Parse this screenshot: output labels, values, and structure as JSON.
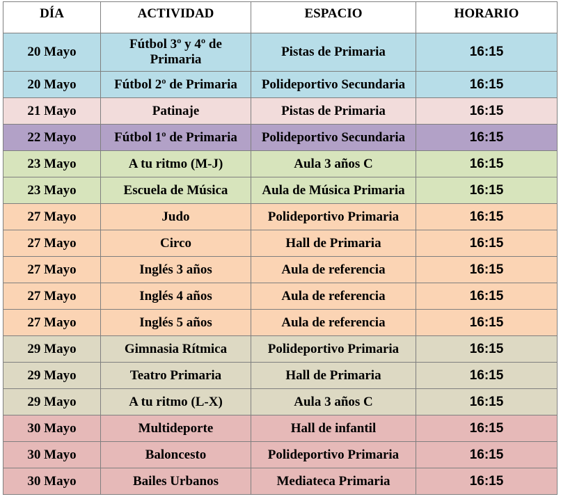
{
  "headers": {
    "dia": "DÍA",
    "actividad": "ACTIVIDAD",
    "espacio": "ESPACIO",
    "horario": "HORARIO"
  },
  "colors": {
    "blue": "#b7dde8",
    "pink": "#f2dcdb",
    "purple": "#b2a1c7",
    "green": "#d7e4bc",
    "orange": "#fbd4b4",
    "beige": "#ddd9c3",
    "rose": "#e6b9b8"
  },
  "rows": [
    {
      "dia": "20 Mayo",
      "actividad": "Fútbol 3º y 4º de Primaria",
      "espacio": "Pistas de Primaria",
      "horario": "16:15",
      "color": "#b7dde8"
    },
    {
      "dia": "20 Mayo",
      "actividad": "Fútbol 2º de Primaria",
      "espacio": "Polideportivo Secundaria",
      "horario": "16:15",
      "color": "#b7dde8"
    },
    {
      "dia": "21 Mayo",
      "actividad": "Patinaje",
      "espacio": "Pistas de Primaria",
      "horario": "16:15",
      "color": "#f2dcdb"
    },
    {
      "dia": "22 Mayo",
      "actividad": "Fútbol 1º de Primaria",
      "espacio": "Polideportivo Secundaria",
      "horario": "16:15",
      "color": "#b2a1c7"
    },
    {
      "dia": "23 Mayo",
      "actividad": "A tu ritmo (M-J)",
      "espacio": "Aula 3 años C",
      "horario": "16:15",
      "color": "#d7e4bc"
    },
    {
      "dia": "23 Mayo",
      "actividad": "Escuela de Música",
      "espacio": "Aula de Música Primaria",
      "horario": "16:15",
      "color": "#d7e4bc"
    },
    {
      "dia": "27 Mayo",
      "actividad": "Judo",
      "espacio": "Polideportivo Primaria",
      "horario": "16:15",
      "color": "#fbd4b4"
    },
    {
      "dia": "27 Mayo",
      "actividad": "Circo",
      "espacio": "Hall de Primaria",
      "horario": "16:15",
      "color": "#fbd4b4"
    },
    {
      "dia": "27 Mayo",
      "actividad": "Inglés 3 años",
      "espacio": "Aula de referencia",
      "horario": "16:15",
      "color": "#fbd4b4"
    },
    {
      "dia": "27 Mayo",
      "actividad": "Inglés 4 años",
      "espacio": "Aula de referencia",
      "horario": "16:15",
      "color": "#fbd4b4"
    },
    {
      "dia": "27 Mayo",
      "actividad": "Inglés 5 años",
      "espacio": "Aula de referencia",
      "horario": "16:15",
      "color": "#fbd4b4"
    },
    {
      "dia": "29 Mayo",
      "actividad": "Gimnasia Rítmica",
      "espacio": "Polideportivo Primaria",
      "horario": "16:15",
      "color": "#ddd9c3"
    },
    {
      "dia": "29 Mayo",
      "actividad": "Teatro Primaria",
      "espacio": "Hall de Primaria",
      "horario": "16:15",
      "color": "#ddd9c3"
    },
    {
      "dia": "29 Mayo",
      "actividad": "A tu ritmo (L-X)",
      "espacio": "Aula 3 años C",
      "horario": "16:15",
      "color": "#ddd9c3"
    },
    {
      "dia": "30 Mayo",
      "actividad": "Multideporte",
      "espacio": "Hall de infantil",
      "horario": "16:15",
      "color": "#e6b9b8"
    },
    {
      "dia": "30 Mayo",
      "actividad": "Baloncesto",
      "espacio": "Polideportivo Primaria",
      "horario": "16:15",
      "color": "#e6b9b8"
    },
    {
      "dia": "30 Mayo",
      "actividad": "Bailes Urbanos",
      "espacio": "Mediateca Primaria",
      "horario": "16:15",
      "color": "#e6b9b8"
    }
  ]
}
